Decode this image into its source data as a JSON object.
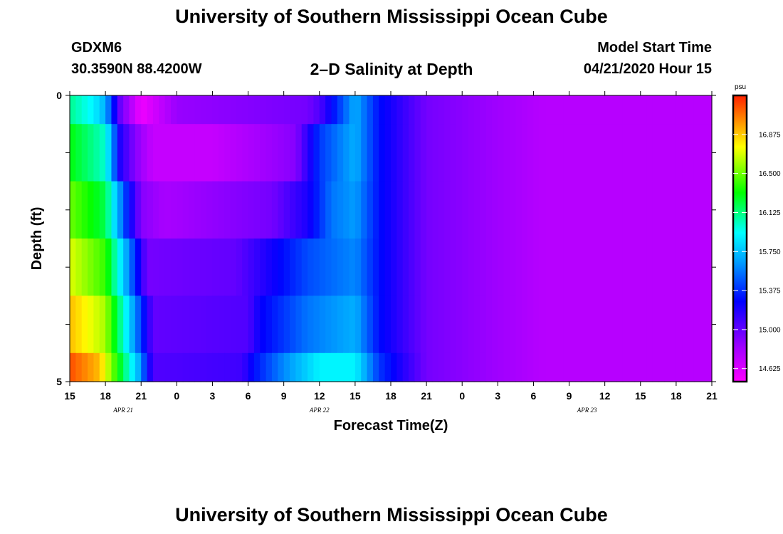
{
  "header": {
    "title": "University of Southern Mississippi Ocean Cube",
    "station": "GDXM6",
    "coords": "30.3590N 88.4200W",
    "subtitle": "2–D Salinity at Depth",
    "start_label": "Model Start Time",
    "start_value": "04/21/2020 Hour 15"
  },
  "footer": {
    "title": "University of Southern Mississippi Ocean Cube"
  },
  "chart_data": {
    "type": "heatmap",
    "xlabel": "Forecast Time(Z)",
    "ylabel": "Depth (ft)",
    "x_tick_labels": [
      "15",
      "18",
      "21",
      "0",
      "3",
      "6",
      "9",
      "12",
      "15",
      "18",
      "21",
      "0",
      "3",
      "6",
      "9",
      "12",
      "15",
      "18",
      "21"
    ],
    "x_range_hours": [
      0,
      54
    ],
    "date_labels": [
      {
        "text": "APR 21",
        "hour": 4.5
      },
      {
        "text": "APR 22",
        "hour": 21
      },
      {
        "text": "APR 23",
        "hour": 43.5
      }
    ],
    "y_tick_labels": [
      "0",
      "5"
    ],
    "ylim": [
      0,
      5
    ],
    "y_minor_ticks": [
      1,
      2,
      3,
      4
    ],
    "colorbar": {
      "unit": "psu",
      "range": [
        14.5,
        17.25
      ],
      "ticks": [
        14.625,
        15.0,
        15.375,
        15.75,
        16.125,
        16.5,
        16.875
      ],
      "tick_labels": [
        "14.625",
        "15.000",
        "15.375",
        "15.750",
        "16.125",
        "16.500",
        "16.875"
      ]
    },
    "layers": [
      {
        "depth_range": [
          0,
          0.5
        ],
        "cols": [
          [
            0,
            16.1
          ],
          [
            2,
            15.9
          ],
          [
            3,
            15.7
          ],
          [
            4.2,
            15.0
          ],
          [
            6,
            14.55
          ],
          [
            9,
            14.85
          ],
          [
            20,
            14.95
          ],
          [
            21,
            15.05
          ],
          [
            24,
            15.7
          ],
          [
            26,
            15.3
          ],
          [
            30,
            14.95
          ],
          [
            40,
            14.75
          ],
          [
            54,
            14.75
          ]
        ]
      },
      {
        "depth_range": [
          0.5,
          1.5
        ],
        "cols": [
          [
            0,
            16.3
          ],
          [
            3,
            16.0
          ],
          [
            4.2,
            15.2
          ],
          [
            5.5,
            14.9
          ],
          [
            7,
            14.7
          ],
          [
            12,
            14.7
          ],
          [
            19,
            14.9
          ],
          [
            21,
            15.4
          ],
          [
            24,
            15.7
          ],
          [
            26,
            15.3
          ],
          [
            30,
            14.95
          ],
          [
            40,
            14.75
          ],
          [
            54,
            14.75
          ]
        ]
      },
      {
        "depth_range": [
          1.5,
          2.5
        ],
        "cols": [
          [
            0,
            16.5
          ],
          [
            3,
            16.2
          ],
          [
            4.7,
            15.4
          ],
          [
            6,
            14.9
          ],
          [
            8,
            14.8
          ],
          [
            17,
            14.95
          ],
          [
            20,
            15.2
          ],
          [
            22,
            15.55
          ],
          [
            24,
            15.65
          ],
          [
            26,
            15.3
          ],
          [
            30,
            14.95
          ],
          [
            40,
            14.75
          ],
          [
            54,
            14.75
          ]
        ]
      },
      {
        "depth_range": [
          2.5,
          3.5
        ],
        "cols": [
          [
            0,
            16.7
          ],
          [
            3,
            16.4
          ],
          [
            5.2,
            15.5
          ],
          [
            6.5,
            14.95
          ],
          [
            14,
            15.0
          ],
          [
            16,
            15.15
          ],
          [
            20,
            15.45
          ],
          [
            24,
            15.6
          ],
          [
            26,
            15.3
          ],
          [
            30,
            14.95
          ],
          [
            40,
            14.75
          ],
          [
            54,
            14.75
          ]
        ]
      },
      {
        "depth_range": [
          3.5,
          4.5
        ],
        "cols": [
          [
            0,
            16.9
          ],
          [
            3,
            16.6
          ],
          [
            5.5,
            15.6
          ],
          [
            7,
            15.0
          ],
          [
            15,
            15.05
          ],
          [
            16,
            15.25
          ],
          [
            20,
            15.55
          ],
          [
            24,
            15.7
          ],
          [
            26,
            15.3
          ],
          [
            30,
            14.95
          ],
          [
            40,
            14.75
          ],
          [
            54,
            14.75
          ]
        ]
      },
      {
        "depth_range": [
          4.5,
          5
        ],
        "cols": [
          [
            0,
            17.15
          ],
          [
            2.5,
            16.9
          ],
          [
            5.8,
            15.7
          ],
          [
            7,
            15.05
          ],
          [
            14.5,
            15.1
          ],
          [
            15.5,
            15.3
          ],
          [
            18,
            15.6
          ],
          [
            21,
            15.9
          ],
          [
            24,
            15.9
          ],
          [
            26,
            15.4
          ],
          [
            30,
            14.95
          ],
          [
            40,
            14.75
          ],
          [
            54,
            14.75
          ]
        ]
      }
    ]
  }
}
